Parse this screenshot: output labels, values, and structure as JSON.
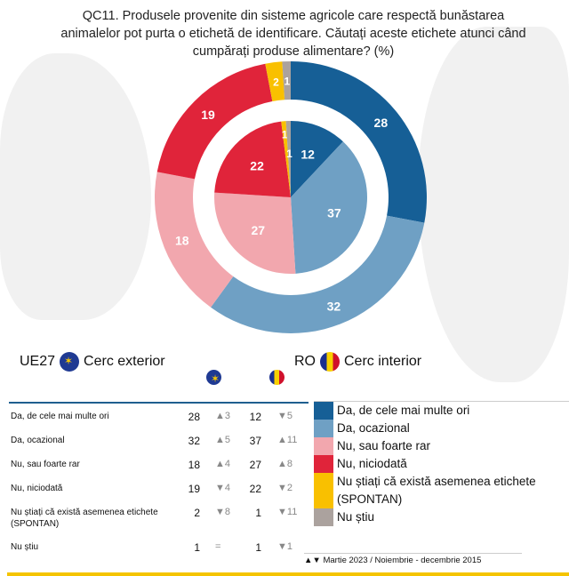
{
  "chart_data": {
    "type": "pie",
    "title": "QC11. Produsele provenite din sisteme agricole care respectă bunăstarea animalelor pot purta o etichetă de identificare. Căutați aceste etichete atunci când cumpărați produse alimentare? (%)",
    "categories": [
      "Da, de cele mai multe ori",
      "Da, ocazional",
      "Nu, sau foarte rar",
      "Nu, niciodată",
      "Nu știați că există asemenea etichete (SPONTAN)",
      "Nu știu"
    ],
    "colors": [
      "#165f96",
      "#6fa0c4",
      "#f2a7ae",
      "#e0243a",
      "#f9c000",
      "#aba29e"
    ],
    "series": [
      {
        "name": "UE27",
        "ring": "Cerc exterior",
        "values": [
          28,
          32,
          18,
          19,
          2,
          1
        ],
        "diff": [
          "▲3",
          "▲5",
          "▲4",
          "▼4",
          "▼8",
          "="
        ]
      },
      {
        "name": "RO",
        "ring": "Cerc interior",
        "values": [
          12,
          37,
          27,
          22,
          1,
          1
        ],
        "diff": [
          "▼5",
          "▲11",
          "▲8",
          "▼2",
          "▼11",
          "▼1"
        ]
      }
    ]
  },
  "legend": {
    "ue": "UE27",
    "ue_ring": "Cerc exterior",
    "ro": "RO",
    "ro_ring": "Cerc interior"
  },
  "note": "Martie 2023 / Noiembrie - decembrie 2015",
  "note_arrows": "▲▼"
}
